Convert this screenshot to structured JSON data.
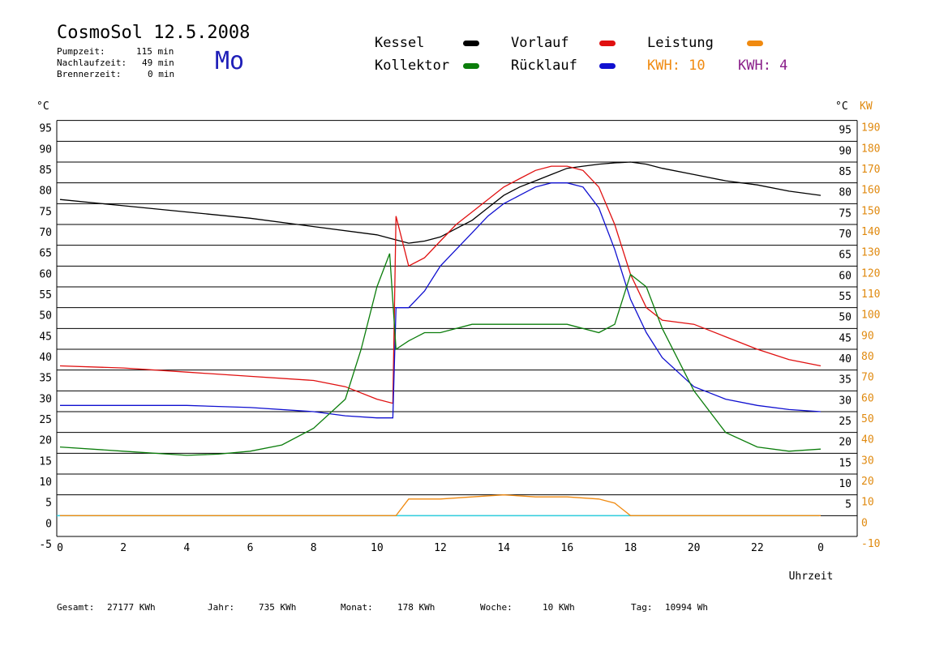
{
  "header": {
    "title": "CosmoSol 12.5.2008",
    "day": "Mo",
    "stats": [
      {
        "label": "Pumpzeit:",
        "value": "115 min"
      },
      {
        "label": "Nachlaufzeit:",
        "value": "49 min"
      },
      {
        "label": "Brennerzeit:",
        "value": "0 min"
      }
    ]
  },
  "legend": {
    "kessel": {
      "label": "Kessel",
      "color": "#000000"
    },
    "kollektor": {
      "label": "Kollektor",
      "color": "#0b7d0b"
    },
    "vorlauf": {
      "label": "Vorlauf",
      "color": "#e01010"
    },
    "ruecklauf": {
      "label": "Rücklauf",
      "color": "#1010d0"
    },
    "leistung": {
      "label": "Leistung",
      "color": "#f08a10"
    },
    "kwh1": "KWH: 10",
    "kwh2": "KWH: 4",
    "kwh2_color": "#8a1f8a"
  },
  "footer": {
    "gesamt_label": "Gesamt:",
    "gesamt_value": "27177 KWh",
    "jahr_label": "Jahr:",
    "jahr_value": "735 KWh",
    "monat_label": "Monat:",
    "monat_value": "178 KWh",
    "woche_label": "Woche:",
    "woche_value": "10 KWh",
    "tag_label": "Tag:",
    "tag_value": "10994 Wh"
  },
  "chart_data": {
    "type": "line",
    "xlabel": "Uhrzeit",
    "ylabel_left": "°C",
    "ylabel_right_1": "°C",
    "ylabel_right_2": "KW",
    "xlim": [
      0,
      24
    ],
    "ylim": [
      -5,
      100
    ],
    "x_ticks": [
      "0",
      "2",
      "4",
      "6",
      "8",
      "10",
      "12",
      "14",
      "16",
      "18",
      "20",
      "22",
      "0"
    ],
    "y_ticks_left": [
      "95",
      "90",
      "85",
      "80",
      "75",
      "70",
      "65",
      "60",
      "55",
      "50",
      "45",
      "40",
      "35",
      "30",
      "25",
      "20",
      "15",
      "10",
      "5",
      "0",
      "-5"
    ],
    "y_ticks_right": [
      "95",
      "90",
      "85",
      "80",
      "75",
      "70",
      "65",
      "60",
      "55",
      "50",
      "45",
      "40",
      "35",
      "30",
      "25",
      "20",
      "15",
      "10",
      "5"
    ],
    "y_ticks_kw": [
      "190",
      "180",
      "170",
      "160",
      "150",
      "140",
      "130",
      "120",
      "110",
      "100",
      "90",
      "80",
      "70",
      "60",
      "50",
      "40",
      "30",
      "20",
      "10",
      "0",
      "-10"
    ],
    "grid": "horizontal",
    "series": [
      {
        "name": "Kessel",
        "color": "#000000",
        "points": [
          [
            0,
            76
          ],
          [
            2,
            74.5
          ],
          [
            4,
            73
          ],
          [
            6,
            71.5
          ],
          [
            8,
            69.5
          ],
          [
            10,
            67.5
          ],
          [
            10.5,
            66.5
          ],
          [
            11,
            65.5
          ],
          [
            11.5,
            66
          ],
          [
            12,
            67
          ],
          [
            12.5,
            69
          ],
          [
            13,
            71
          ],
          [
            13.5,
            74
          ],
          [
            14,
            77
          ],
          [
            14.5,
            79
          ],
          [
            15,
            80.5
          ],
          [
            15.5,
            82
          ],
          [
            16,
            83.5
          ],
          [
            16.5,
            84
          ],
          [
            17,
            84.5
          ],
          [
            17.5,
            84.8
          ],
          [
            18,
            85
          ],
          [
            18.5,
            84.5
          ],
          [
            19,
            83.5
          ],
          [
            20,
            82
          ],
          [
            21,
            80.5
          ],
          [
            22,
            79.5
          ],
          [
            23,
            78
          ],
          [
            24,
            77
          ]
        ]
      },
      {
        "name": "Vorlauf",
        "color": "#e01010",
        "points": [
          [
            0,
            36
          ],
          [
            2,
            35.5
          ],
          [
            4,
            34.5
          ],
          [
            6,
            33.5
          ],
          [
            8,
            32.5
          ],
          [
            9,
            31
          ],
          [
            10,
            28
          ],
          [
            10.5,
            27
          ],
          [
            10.6,
            72
          ],
          [
            11,
            60
          ],
          [
            11.5,
            62
          ],
          [
            12,
            66
          ],
          [
            12.5,
            70
          ],
          [
            13,
            73
          ],
          [
            13.5,
            76
          ],
          [
            14,
            79
          ],
          [
            14.5,
            81
          ],
          [
            15,
            83
          ],
          [
            15.5,
            84
          ],
          [
            16,
            84
          ],
          [
            16.5,
            83
          ],
          [
            17,
            79
          ],
          [
            17.5,
            70
          ],
          [
            18,
            58
          ],
          [
            18.5,
            50
          ],
          [
            19,
            47
          ],
          [
            20,
            46
          ],
          [
            21,
            43
          ],
          [
            22,
            40
          ],
          [
            23,
            37.5
          ],
          [
            24,
            36
          ]
        ]
      },
      {
        "name": "Rücklauf",
        "color": "#1010d0",
        "points": [
          [
            0,
            26.5
          ],
          [
            2,
            26.5
          ],
          [
            4,
            26.5
          ],
          [
            6,
            26
          ],
          [
            8,
            25
          ],
          [
            9,
            24
          ],
          [
            10,
            23.5
          ],
          [
            10.5,
            23.5
          ],
          [
            10.6,
            50
          ],
          [
            11,
            50
          ],
          [
            11.5,
            54
          ],
          [
            12,
            60
          ],
          [
            12.5,
            64
          ],
          [
            13,
            68
          ],
          [
            13.5,
            72
          ],
          [
            14,
            75
          ],
          [
            14.5,
            77
          ],
          [
            15,
            79
          ],
          [
            15.5,
            80
          ],
          [
            16,
            80
          ],
          [
            16.5,
            79
          ],
          [
            17,
            74
          ],
          [
            17.5,
            64
          ],
          [
            18,
            52
          ],
          [
            18.5,
            44
          ],
          [
            19,
            38
          ],
          [
            20,
            31
          ],
          [
            21,
            28
          ],
          [
            22,
            26.5
          ],
          [
            23,
            25.5
          ],
          [
            24,
            25
          ]
        ]
      },
      {
        "name": "Kollektor",
        "color": "#0b7d0b",
        "points": [
          [
            0,
            16.5
          ],
          [
            2,
            15.5
          ],
          [
            4,
            14.5
          ],
          [
            5,
            14.8
          ],
          [
            6,
            15.5
          ],
          [
            7,
            17
          ],
          [
            8,
            21
          ],
          [
            9,
            28
          ],
          [
            9.5,
            40
          ],
          [
            10,
            55
          ],
          [
            10.4,
            63
          ],
          [
            10.6,
            40
          ],
          [
            11,
            42
          ],
          [
            11.5,
            44
          ],
          [
            12,
            44
          ],
          [
            13,
            46
          ],
          [
            14,
            46
          ],
          [
            15,
            46
          ],
          [
            16,
            46
          ],
          [
            17,
            44
          ],
          [
            17.5,
            46
          ],
          [
            18,
            58
          ],
          [
            18.5,
            55
          ],
          [
            19,
            45
          ],
          [
            20,
            30
          ],
          [
            21,
            20
          ],
          [
            22,
            16.5
          ],
          [
            23,
            15.5
          ],
          [
            24,
            16
          ]
        ]
      },
      {
        "name": "Leistung",
        "color": "#f08a10",
        "points": [
          [
            0,
            0
          ],
          [
            10.6,
            0
          ],
          [
            11,
            4
          ],
          [
            12,
            4
          ],
          [
            13,
            4.5
          ],
          [
            14,
            5
          ],
          [
            15,
            4.5
          ],
          [
            16,
            4.5
          ],
          [
            17,
            4
          ],
          [
            17.5,
            3
          ],
          [
            18,
            0
          ],
          [
            24,
            0
          ]
        ]
      }
    ]
  }
}
